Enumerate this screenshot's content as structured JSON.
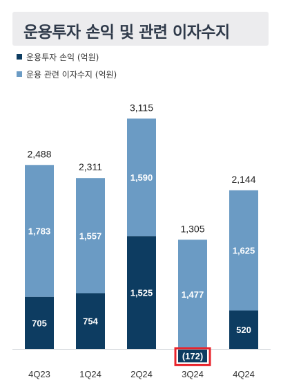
{
  "title": "운용투자 손익 및 관련 이자수지",
  "legend": [
    {
      "label": "운용투자 손익 (억원)",
      "color": "#0d3c61"
    },
    {
      "label": "운용 관련 이자수지 (억원)",
      "color": "#6b9bc4"
    }
  ],
  "chart_data": {
    "type": "bar",
    "stacked": true,
    "categories": [
      "4Q23",
      "1Q24",
      "2Q24",
      "3Q24",
      "4Q24"
    ],
    "series": [
      {
        "name": "운용투자 손익 (억원)",
        "color": "#0d3c61",
        "values": [
          705,
          754,
          1525,
          -172,
          520
        ],
        "labels": [
          "705",
          "754",
          "1,525",
          "(172)",
          "520"
        ]
      },
      {
        "name": "운용 관련 이자수지 (억원)",
        "color": "#6b9bc4",
        "values": [
          1783,
          1557,
          1590,
          1477,
          1625
        ],
        "labels": [
          "1,783",
          "1,557",
          "1,590",
          "1,477",
          "1,625"
        ]
      }
    ],
    "totals": [
      2488,
      2311,
      3115,
      1305,
      2144
    ],
    "total_labels": [
      "2,488",
      "2,311",
      "3,115",
      "1,305",
      "2,144"
    ],
    "highlight": {
      "category": "3Q24",
      "color": "#e8242c"
    },
    "legend_position": "top-left",
    "grid": false
  }
}
